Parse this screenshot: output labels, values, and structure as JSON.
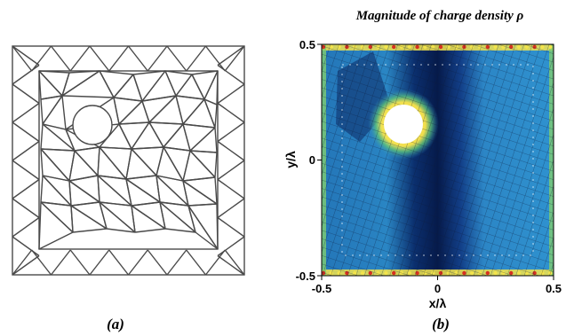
{
  "panel_a": {
    "caption": "(a)"
  },
  "panel_b": {
    "title": "Magnitude of charge density  ρ",
    "caption": "(b)",
    "xlabel": "x/λ",
    "ylabel": "y/λ",
    "x_ticks": [
      "-0.5",
      "0",
      "0.5"
    ],
    "y_ticks": [
      "0.5",
      "0",
      "-0.5"
    ],
    "colors": {
      "low": "#08306b",
      "mid": "#2c7fb8",
      "cyan": "#41b6c4",
      "high_green": "#7fcd6f",
      "high_yellow": "#f2e34c",
      "peak": "#d7301f"
    }
  }
}
